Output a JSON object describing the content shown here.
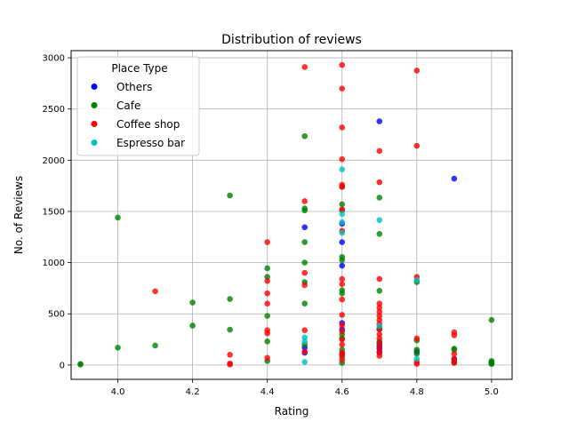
{
  "chart_data": {
    "type": "scatter",
    "title": "Distribution of reviews",
    "xlabel": "Rating",
    "ylabel": "No. of Reviews",
    "xlim": [
      3.875,
      5.055
    ],
    "ylim": [
      -140,
      3070
    ],
    "xticks": [
      "4.0",
      "4.2",
      "4.4",
      "4.6",
      "4.8",
      "5.0"
    ],
    "xtick_values": [
      4.0,
      4.2,
      4.4,
      4.6,
      4.8,
      5.0
    ],
    "yticks": [
      "0",
      "500",
      "1000",
      "1500",
      "2000",
      "2500",
      "3000"
    ],
    "ytick_values": [
      0,
      500,
      1000,
      1500,
      2000,
      2500,
      3000
    ],
    "grid": true,
    "legend": {
      "title": "Place Type",
      "position": "top-left"
    },
    "series": [
      {
        "name": "Others",
        "color": "#0000ff",
        "points": [
          [
            4.5,
            1345
          ],
          [
            4.5,
            170
          ],
          [
            4.5,
            120
          ],
          [
            4.6,
            1380
          ],
          [
            4.6,
            1200
          ],
          [
            4.6,
            970
          ],
          [
            4.6,
            410
          ],
          [
            4.6,
            350
          ],
          [
            4.6,
            110
          ],
          [
            4.7,
            2380
          ],
          [
            4.7,
            350
          ],
          [
            4.7,
            215
          ],
          [
            4.7,
            185
          ],
          [
            4.7,
            160
          ],
          [
            4.7,
            130
          ],
          [
            4.8,
            130
          ],
          [
            4.9,
            1820
          ],
          [
            4.9,
            60
          ],
          [
            4.9,
            30
          ],
          [
            5.0,
            20
          ]
        ]
      },
      {
        "name": "Cafe",
        "color": "#008000",
        "points": [
          [
            3.9,
            10
          ],
          [
            3.9,
            5
          ],
          [
            4.0,
            1440
          ],
          [
            4.0,
            170
          ],
          [
            4.1,
            190
          ],
          [
            4.2,
            610
          ],
          [
            4.2,
            385
          ],
          [
            4.3,
            1655
          ],
          [
            4.3,
            645
          ],
          [
            4.3,
            345
          ],
          [
            4.4,
            945
          ],
          [
            4.4,
            860
          ],
          [
            4.4,
            480
          ],
          [
            4.4,
            230
          ],
          [
            4.4,
            40
          ],
          [
            4.5,
            2235
          ],
          [
            4.5,
            1530
          ],
          [
            4.5,
            1510
          ],
          [
            4.5,
            1200
          ],
          [
            4.5,
            1000
          ],
          [
            4.5,
            810
          ],
          [
            4.5,
            600
          ],
          [
            4.5,
            200
          ],
          [
            4.6,
            1740
          ],
          [
            4.6,
            1570
          ],
          [
            4.6,
            1510
          ],
          [
            4.6,
            1055
          ],
          [
            4.6,
            1025
          ],
          [
            4.6,
            730
          ],
          [
            4.6,
            700
          ],
          [
            4.6,
            300
          ],
          [
            4.6,
            260
          ],
          [
            4.6,
            150
          ],
          [
            4.6,
            80
          ],
          [
            4.6,
            20
          ],
          [
            4.7,
            1635
          ],
          [
            4.7,
            1280
          ],
          [
            4.7,
            725
          ],
          [
            4.7,
            360
          ],
          [
            4.7,
            230
          ],
          [
            4.8,
            810
          ],
          [
            4.8,
            240
          ],
          [
            4.8,
            150
          ],
          [
            4.8,
            110
          ],
          [
            4.9,
            160
          ],
          [
            4.9,
            150
          ],
          [
            4.9,
            30
          ],
          [
            5.0,
            440
          ],
          [
            5.0,
            40
          ],
          [
            5.0,
            25
          ],
          [
            5.0,
            15
          ],
          [
            5.0,
            10
          ]
        ]
      },
      {
        "name": "Coffee shop",
        "color": "#ff0000",
        "points": [
          [
            4.1,
            720
          ],
          [
            4.3,
            100
          ],
          [
            4.3,
            15
          ],
          [
            4.3,
            5
          ],
          [
            4.4,
            1200
          ],
          [
            4.4,
            820
          ],
          [
            4.4,
            700
          ],
          [
            4.4,
            600
          ],
          [
            4.4,
            340
          ],
          [
            4.4,
            310
          ],
          [
            4.4,
            70
          ],
          [
            4.5,
            2910
          ],
          [
            4.5,
            1600
          ],
          [
            4.5,
            900
          ],
          [
            4.5,
            780
          ],
          [
            4.5,
            340
          ],
          [
            4.5,
            130
          ],
          [
            4.6,
            2930
          ],
          [
            4.6,
            2700
          ],
          [
            4.6,
            2320
          ],
          [
            4.6,
            2010
          ],
          [
            4.6,
            1760
          ],
          [
            4.6,
            1740
          ],
          [
            4.6,
            1520
          ],
          [
            4.6,
            1310
          ],
          [
            4.6,
            840
          ],
          [
            4.6,
            790
          ],
          [
            4.6,
            640
          ],
          [
            4.6,
            490
          ],
          [
            4.6,
            390
          ],
          [
            4.6,
            330
          ],
          [
            4.6,
            250
          ],
          [
            4.6,
            200
          ],
          [
            4.6,
            120
          ],
          [
            4.6,
            100
          ],
          [
            4.6,
            50
          ],
          [
            4.7,
            2090
          ],
          [
            4.7,
            1785
          ],
          [
            4.7,
            840
          ],
          [
            4.7,
            600
          ],
          [
            4.7,
            560
          ],
          [
            4.7,
            520
          ],
          [
            4.7,
            480
          ],
          [
            4.7,
            440
          ],
          [
            4.7,
            400
          ],
          [
            4.7,
            350
          ],
          [
            4.7,
            300
          ],
          [
            4.7,
            260
          ],
          [
            4.7,
            210
          ],
          [
            4.7,
            160
          ],
          [
            4.7,
            120
          ],
          [
            4.7,
            90
          ],
          [
            4.8,
            2875
          ],
          [
            4.8,
            2140
          ],
          [
            4.8,
            860
          ],
          [
            4.8,
            260
          ],
          [
            4.8,
            30
          ],
          [
            4.8,
            10
          ],
          [
            4.9,
            320
          ],
          [
            4.9,
            290
          ],
          [
            4.9,
            110
          ],
          [
            4.9,
            60
          ],
          [
            4.9,
            20
          ]
        ]
      },
      {
        "name": "Espresso bar",
        "color": "#00bfbf",
        "points": [
          [
            4.5,
            270
          ],
          [
            4.5,
            230
          ],
          [
            4.5,
            30
          ],
          [
            4.6,
            1910
          ],
          [
            4.6,
            1475
          ],
          [
            4.6,
            1395
          ],
          [
            4.6,
            1290
          ],
          [
            4.7,
            1415
          ],
          [
            4.7,
            380
          ],
          [
            4.8,
            830
          ],
          [
            4.8,
            60
          ]
        ]
      }
    ]
  }
}
